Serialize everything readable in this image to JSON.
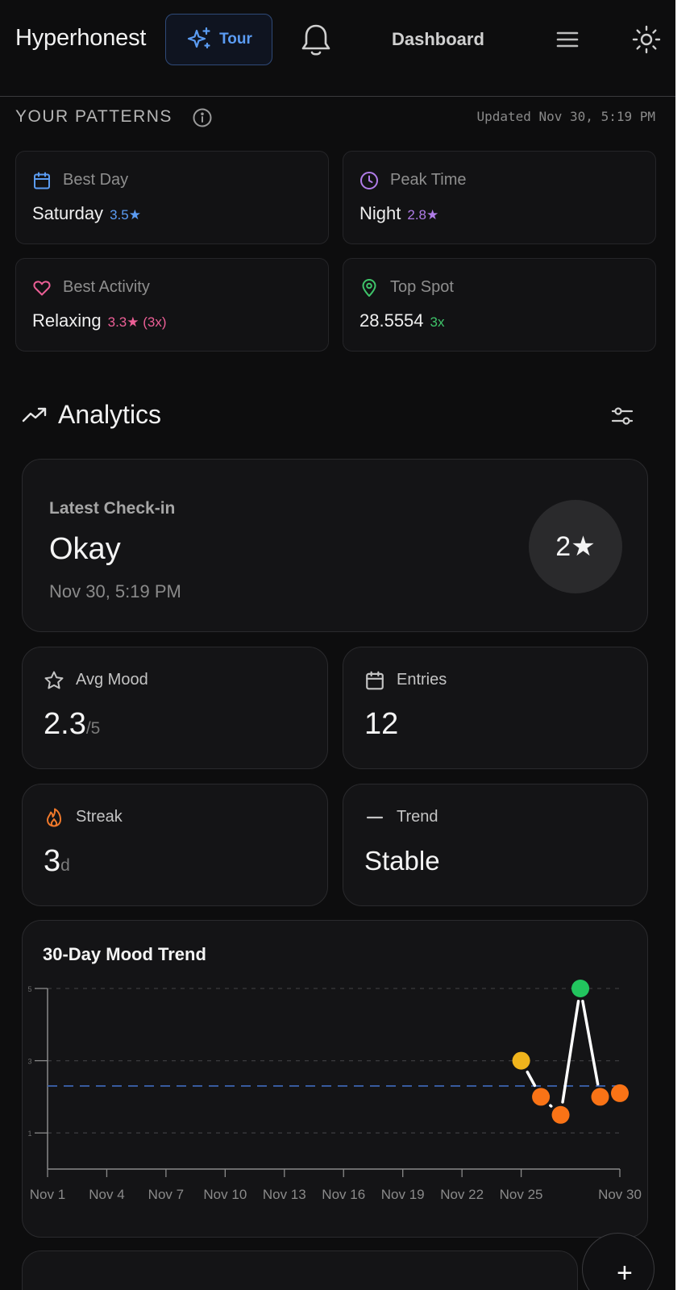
{
  "header": {
    "brand": "Hyperhonest",
    "tour_label": "Tour",
    "nav_label": "Dashboard"
  },
  "patterns": {
    "heading": "YOUR PATTERNS",
    "updated": "Updated Nov 30, 5:19 PM",
    "cards": [
      {
        "label": "Best Day",
        "value": "Saturday",
        "sub": "3.5★",
        "icon": "calendar-icon",
        "color": "#5b9cf3"
      },
      {
        "label": "Peak Time",
        "value": "Night",
        "sub": "2.8★",
        "icon": "clock-icon",
        "color": "#b07ce8"
      },
      {
        "label": "Best Activity",
        "value": "Relaxing",
        "sub": "3.3★ (3x)",
        "icon": "heart-icon",
        "color": "#ec5f96"
      },
      {
        "label": "Top Spot",
        "value": "28.5554",
        "sub": "3x",
        "icon": "map-pin-icon",
        "color": "#3fc46a"
      }
    ]
  },
  "analytics": {
    "title": "Analytics",
    "latest": {
      "label": "Latest Check-in",
      "mood": "Okay",
      "time": "Nov 30, 5:19 PM",
      "rating": "2★"
    },
    "stats": {
      "avg_mood": {
        "label": "Avg Mood",
        "value": "2.3",
        "unit": "/5",
        "icon": "star-icon"
      },
      "entries": {
        "label": "Entries",
        "value": "12",
        "icon": "calendar-icon"
      },
      "streak": {
        "label": "Streak",
        "value": "3",
        "unit": "d",
        "icon": "flame-icon",
        "color": "#f0792b"
      },
      "trend": {
        "label": "Trend",
        "value": "Stable",
        "icon": "minus-icon"
      }
    }
  },
  "chart_data": {
    "type": "line",
    "title": "30-Day Mood Trend",
    "ylim": [
      0,
      5
    ],
    "y_ticks": [
      1,
      3,
      5
    ],
    "grid": true,
    "x_tick_labels": [
      "Nov 1",
      "Nov 4",
      "Nov 7",
      "Nov 10",
      "Nov 13",
      "Nov 16",
      "Nov 19",
      "Nov 22",
      "Nov 25",
      "Nov 30"
    ],
    "average": 2.3,
    "series": [
      {
        "x": [
          25,
          26,
          27,
          28,
          29,
          30
        ],
        "values": [
          3.0,
          2.0,
          1.5,
          5.0,
          2.0,
          2.1
        ],
        "colors": [
          "#f0b41c",
          "#f97316",
          "#f97316",
          "#22c55e",
          "#f97316",
          "#f97316"
        ]
      }
    ],
    "colors": {
      "line": "#ffffff",
      "average": "#3a5fa8",
      "grid": "#3a3a3d",
      "axis": "#8a8a8a"
    }
  }
}
